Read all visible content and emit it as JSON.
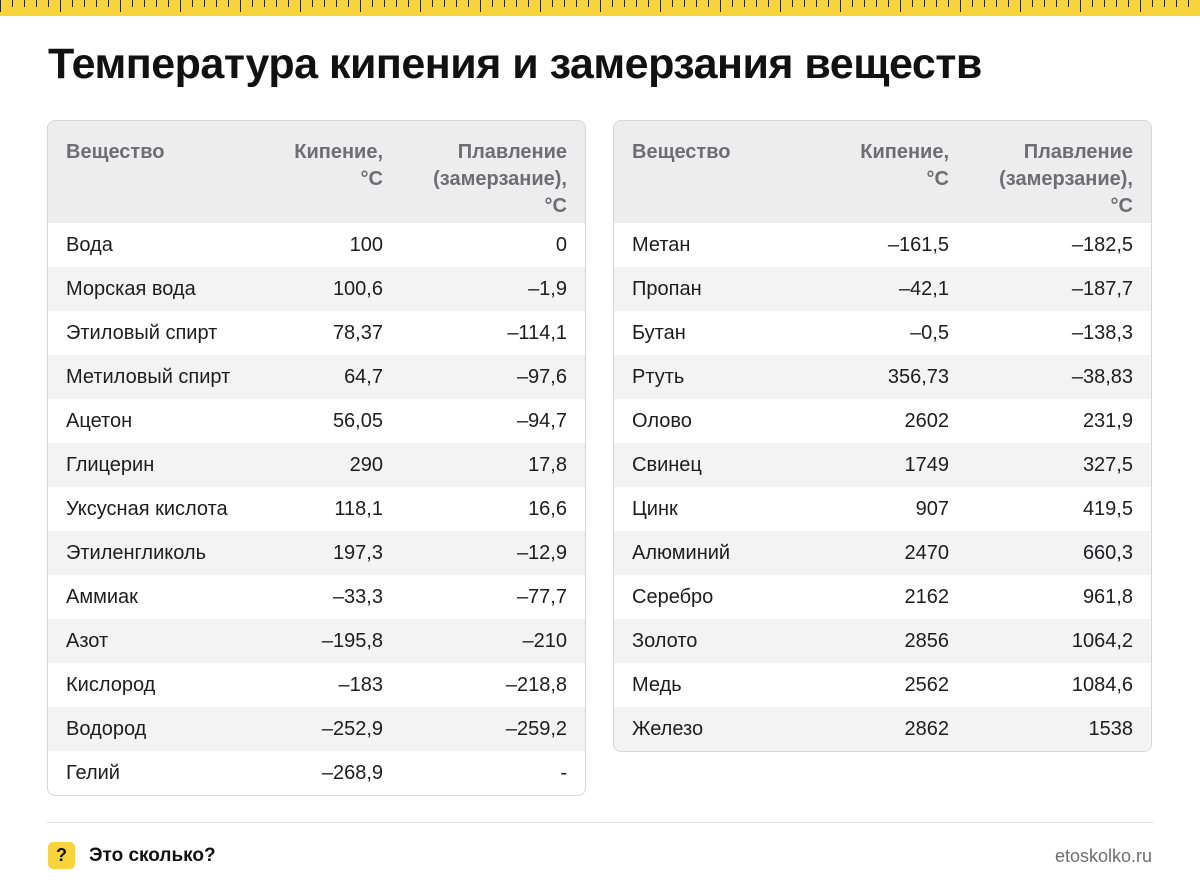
{
  "title": "Температура кипения и замерзания веществ",
  "columns": {
    "substance": "Вещество",
    "boiling": "Кипение, °С",
    "boiling_line1": "Кипение,",
    "boiling_line2": "°С",
    "melting_line1": "Плавление",
    "melting_line2": "(замерзание),",
    "melting_line3": "°С"
  },
  "left_table": [
    {
      "name": "Вода",
      "boiling": "100",
      "melting": "0"
    },
    {
      "name": "Морская вода",
      "boiling": "100,6",
      "melting": "–1,9"
    },
    {
      "name": "Этиловый спирт",
      "boiling": "78,37",
      "melting": "–114,1"
    },
    {
      "name": "Метиловый спирт",
      "boiling": "64,7",
      "melting": "–97,6"
    },
    {
      "name": "Ацетон",
      "boiling": "56,05",
      "melting": "–94,7"
    },
    {
      "name": "Глицерин",
      "boiling": "290",
      "melting": "17,8"
    },
    {
      "name": "Уксусная кислота",
      "boiling": "118,1",
      "melting": "16,6"
    },
    {
      "name": "Этиленгликоль",
      "boiling": "197,3",
      "melting": "–12,9"
    },
    {
      "name": "Аммиак",
      "boiling": "–33,3",
      "melting": "–77,7"
    },
    {
      "name": "Азот",
      "boiling": "–195,8",
      "melting": "–210"
    },
    {
      "name": "Кислород",
      "boiling": "–183",
      "melting": "–218,8"
    },
    {
      "name": "Водород",
      "boiling": "–252,9",
      "melting": "–259,2"
    },
    {
      "name": "Гелий",
      "boiling": "–268,9",
      "melting": "-"
    }
  ],
  "right_table": [
    {
      "name": "Метан",
      "boiling": "–161,5",
      "melting": "–182,5"
    },
    {
      "name": "Пропан",
      "boiling": "–42,1",
      "melting": "–187,7"
    },
    {
      "name": "Бутан",
      "boiling": "–0,5",
      "melting": "–138,3"
    },
    {
      "name": "Ртуть",
      "boiling": "356,73",
      "melting": "–38,83"
    },
    {
      "name": "Олово",
      "boiling": "2602",
      "melting": "231,9"
    },
    {
      "name": "Свинец",
      "boiling": "1749",
      "melting": "327,5"
    },
    {
      "name": "Цинк",
      "boiling": "907",
      "melting": "419,5"
    },
    {
      "name": "Алюминий",
      "boiling": "2470",
      "melting": "660,3"
    },
    {
      "name": "Серебро",
      "boiling": "2162",
      "melting": "961,8"
    },
    {
      "name": "Золото",
      "boiling": "2856",
      "melting": "1064,2"
    },
    {
      "name": "Медь",
      "boiling": "2562",
      "melting": "1084,6"
    },
    {
      "name": "Железо",
      "boiling": "2862",
      "melting": "1538"
    }
  ],
  "footer": {
    "badge": "?",
    "brand": "Это сколько?",
    "site": "etoskolko.ru"
  },
  "colors": {
    "accent_yellow": "#f7d43b",
    "header_bg": "#ededed",
    "stripe_bg": "#f3f3f3"
  }
}
